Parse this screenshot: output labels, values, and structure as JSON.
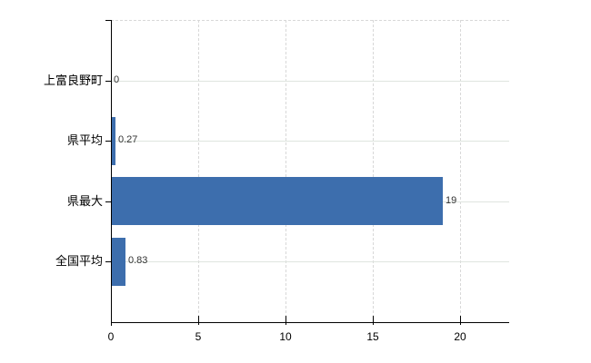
{
  "chart_data": {
    "type": "bar",
    "orientation": "horizontal",
    "title": "",
    "xlabel": "",
    "ylabel": "",
    "categories": [
      "上富良野町",
      "県平均",
      "県最大",
      "全国平均"
    ],
    "values": [
      0,
      0.27,
      19,
      0.83
    ],
    "value_labels": [
      "0",
      "0.27",
      "19",
      "0.83"
    ],
    "x_ticks": [
      0,
      5,
      10,
      15,
      20
    ],
    "x_tick_labels": [
      "0",
      "5",
      "10",
      "15",
      "20"
    ],
    "xlim": [
      0,
      22.8
    ],
    "legend": "none",
    "grid": {
      "vertical_lines": "dashed",
      "horizontal_category_lines": "solid",
      "top_border": "dashed"
    },
    "colors": {
      "bar": "#3d6ead",
      "axis": "#000000",
      "grid_dashed": "#d8d8d8",
      "grid_solid": "#dfe5df",
      "category_label": "#000000",
      "value_label": "#333333",
      "background": "#ffffff"
    }
  }
}
